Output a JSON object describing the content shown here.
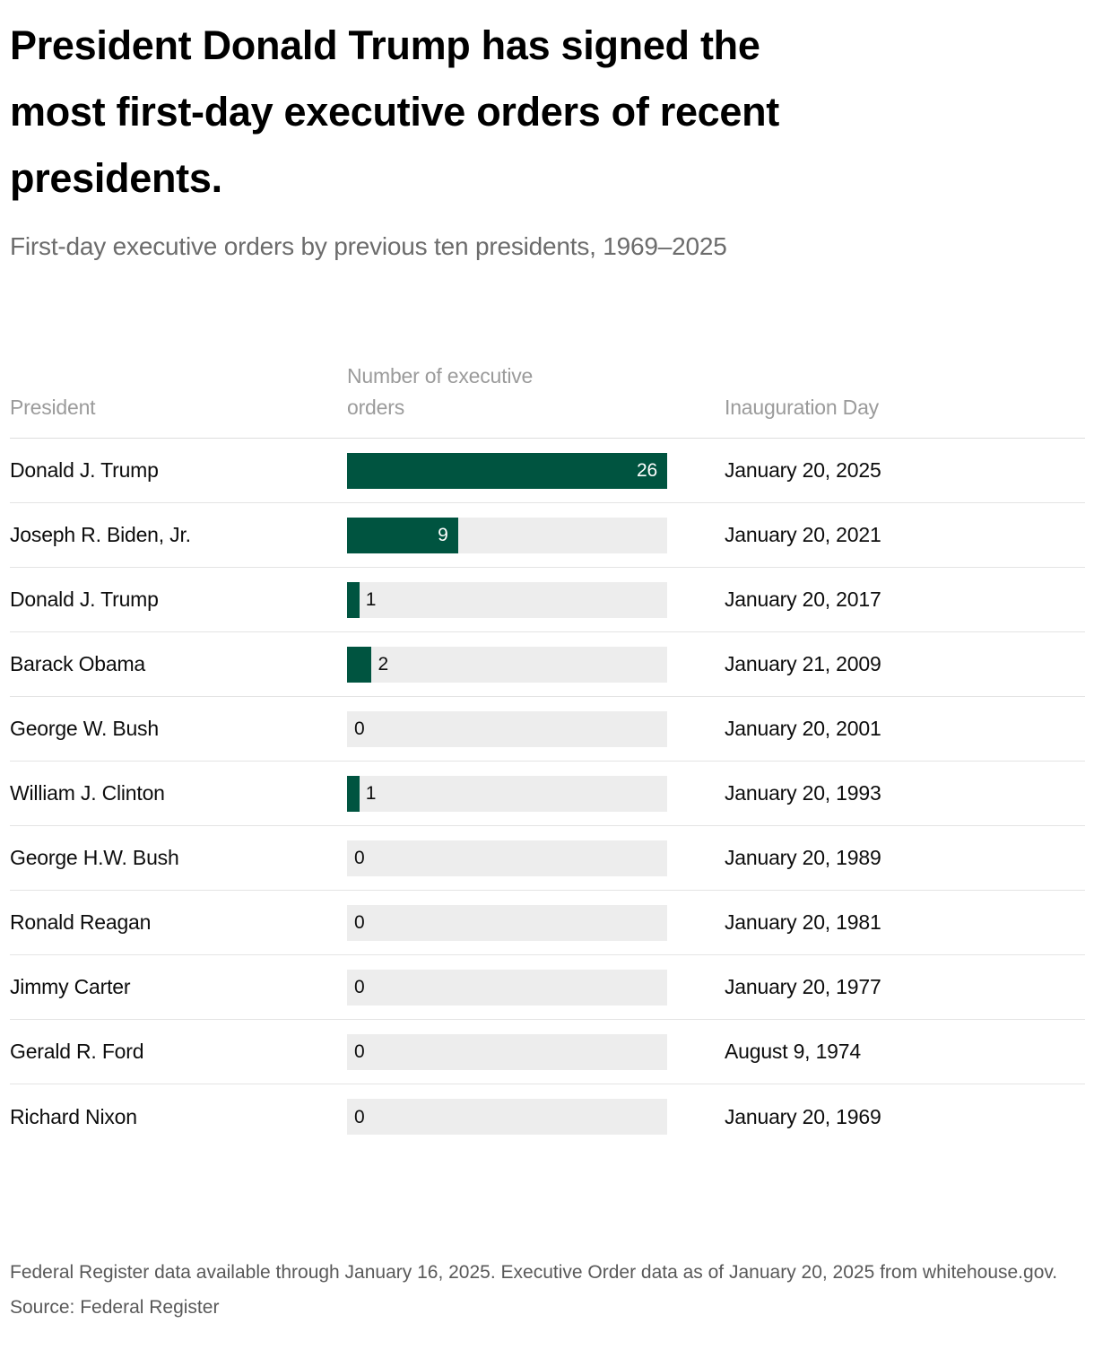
{
  "chart_data": {
    "type": "bar",
    "orientation": "horizontal",
    "title": "President Donald Trump has signed the most first-day executive orders of recent presidents.",
    "subtitle": "First-day executive orders by previous ten presidents, 1969–2025",
    "categories": [
      "Donald J. Trump",
      "Joseph R. Biden, Jr.",
      "Donald J. Trump",
      "Barack Obama",
      "George W. Bush",
      "William J. Clinton",
      "George H.W. Bush",
      "Ronald Reagan",
      "Jimmy Carter",
      "Gerald R. Ford",
      "Richard Nixon"
    ],
    "values": [
      26,
      9,
      1,
      2,
      0,
      1,
      0,
      0,
      0,
      0,
      0
    ],
    "inauguration_days": [
      "January 20, 2025",
      "January 20, 2021",
      "January 20, 2017",
      "January 21, 2009",
      "January 20, 2001",
      "January 20, 1993",
      "January 20, 1989",
      "January 20, 1981",
      "January 20, 1977",
      "August 9, 1974",
      "January 20, 1969"
    ],
    "xlim": [
      0,
      26
    ],
    "grid": "off",
    "legend": "none",
    "bar_color": "#005440",
    "track_color": "#ededed",
    "value_label_inside_color": "#ffffff",
    "value_label_outside_color": "#0d0d0d",
    "note": "Federal Register data available through January 16, 2025. Executive Order data as of January 20, 2025 from whitehouse.gov.",
    "source": "Source: Federal Register"
  },
  "header": {
    "title_lines": [
      "President Donald Trump has signed the",
      "most first-day executive orders of recent",
      "presidents."
    ],
    "subtitle": "First-day executive orders by previous ten presidents, 1969–2025"
  },
  "table": {
    "columns": {
      "president": "President",
      "orders": "Number of executive orders",
      "inauguration": "Inauguration Day"
    }
  },
  "footer": {
    "note": "Federal Register data available through January 16, 2025. Executive Order data as of January 20, 2025 from whitehouse.gov.",
    "source": "Source: Federal Register"
  }
}
